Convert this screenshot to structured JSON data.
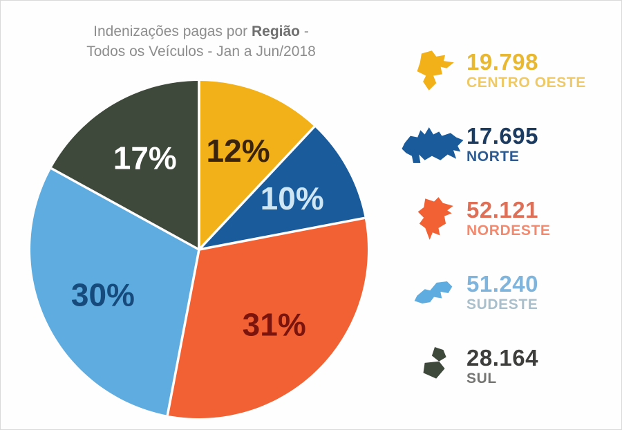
{
  "title": {
    "line1_prefix": "Indenizações pagas por ",
    "line1_bold": "Região",
    "line1_suffix": " -",
    "line2": "Todos os Veículos - Jan a Jun/2018"
  },
  "chart_data": {
    "type": "pie",
    "title": "Indenizações pagas por Região - Todos os Veículos - Jan a Jun/2018",
    "start_angle_deg": 0,
    "direction": "clockwise",
    "legend_position": "right",
    "slices": [
      {
        "region": "Centro Oeste",
        "pct": 12,
        "value": "19.798",
        "color": "#F2B118",
        "pct_label": "12%",
        "pct_label_color": "#3A250C"
      },
      {
        "region": "Norte",
        "pct": 10,
        "value": "17.695",
        "color": "#1A5B9C",
        "pct_label": "10%",
        "pct_label_color": "#CFE6F5"
      },
      {
        "region": "Nordeste",
        "pct": 31,
        "value": "52.121",
        "color": "#F26134",
        "pct_label": "31%",
        "pct_label_color": "#7B140C"
      },
      {
        "region": "Sudeste",
        "pct": 30,
        "value": "51.240",
        "color": "#5FADE0",
        "pct_label": "30%",
        "pct_label_color": "#164A7C"
      },
      {
        "region": "Sul",
        "pct": 17,
        "value": "28.164",
        "color": "#3E483B",
        "pct_label": "17%",
        "pct_label_color": "#FFFFFF"
      }
    ]
  },
  "legend": {
    "items": [
      {
        "value": "19.798",
        "label": "CENTRO OESTE",
        "icon": "centro-oeste-map-icon",
        "value_color": "#E9B832",
        "label_color": "#EDC967"
      },
      {
        "value": "17.695",
        "label": "NORTE",
        "icon": "norte-map-icon",
        "value_color": "#1C3B60",
        "label_color": "#2E5C92"
      },
      {
        "value": "52.121",
        "label": "NORDESTE",
        "icon": "nordeste-map-icon",
        "value_color": "#DE7058",
        "label_color": "#F28A70"
      },
      {
        "value": "51.240",
        "label": "SUDESTE",
        "icon": "sudeste-map-icon",
        "value_color": "#7FB5DC",
        "label_color": "#A9BFCB"
      },
      {
        "value": "28.164",
        "label": "SUL",
        "icon": "sul-map-icon",
        "value_color": "#3E3E3C",
        "label_color": "#757573"
      }
    ]
  }
}
